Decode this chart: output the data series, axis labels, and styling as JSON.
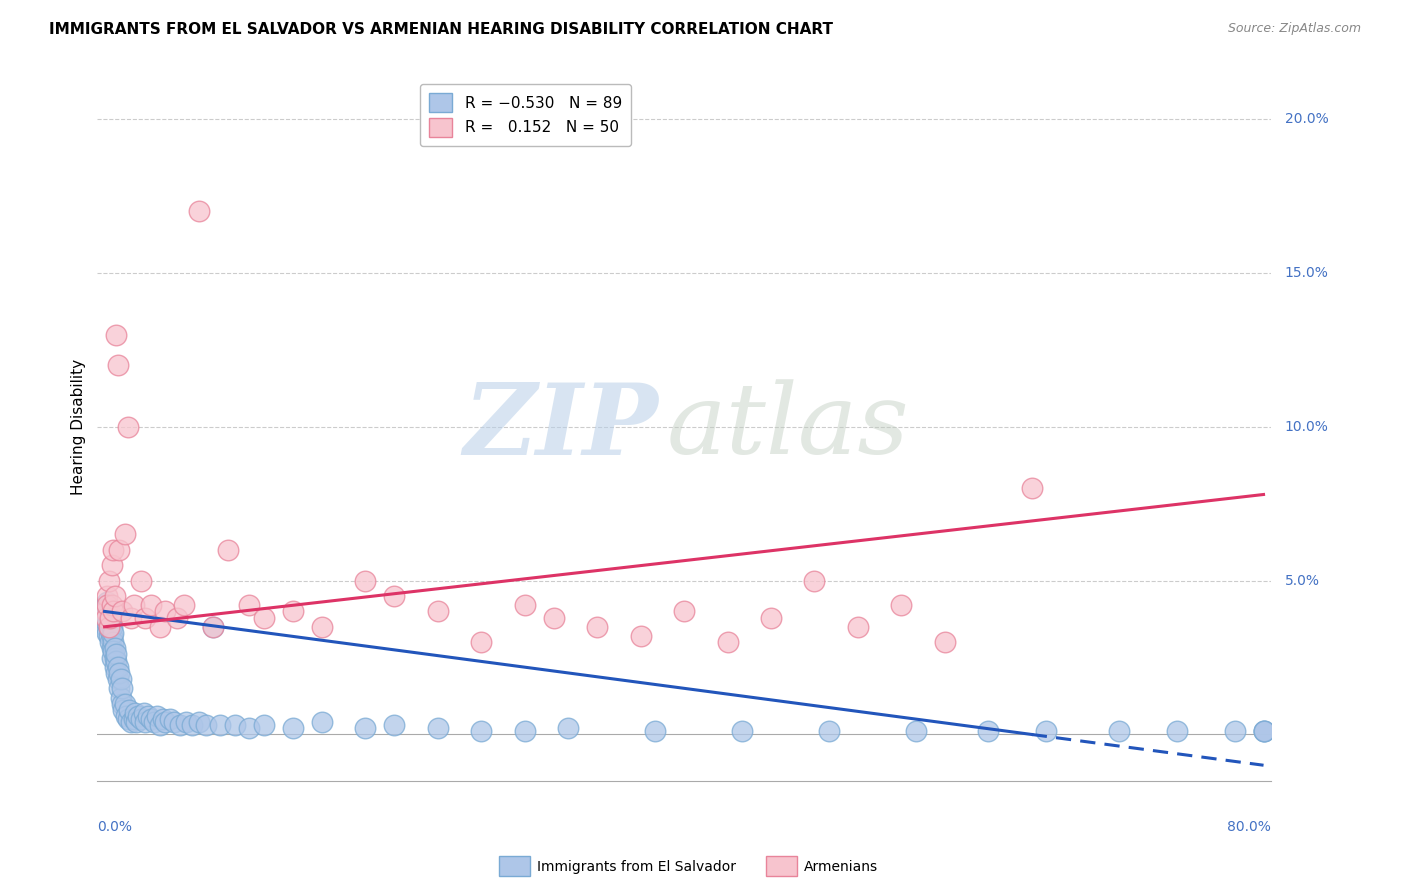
{
  "title": "IMMIGRANTS FROM EL SALVADOR VS ARMENIAN HEARING DISABILITY CORRELATION CHART",
  "source": "Source: ZipAtlas.com",
  "ylabel": "Hearing Disability",
  "right_yticks": [
    "20.0%",
    "15.0%",
    "10.0%",
    "5.0%"
  ],
  "right_ytick_vals": [
    0.2,
    0.15,
    0.1,
    0.05
  ],
  "blue_color": "#aec6e8",
  "pink_color": "#f7c4ce",
  "blue_edge": "#7aaad4",
  "pink_edge": "#e8849a",
  "trend_blue": "#2255bb",
  "trend_pink": "#dd3366",
  "xlim": [
    -0.005,
    0.805
  ],
  "ylim": [
    -0.015,
    0.215
  ],
  "blue_trend_x0": 0.0,
  "blue_trend_y0": 0.04,
  "blue_trend_x1": 0.8,
  "blue_trend_y1": -0.01,
  "pink_trend_x0": 0.0,
  "pink_trend_y0": 0.035,
  "pink_trend_x1": 0.8,
  "pink_trend_y1": 0.078,
  "blue_x": [
    0.001,
    0.001,
    0.001,
    0.002,
    0.002,
    0.002,
    0.002,
    0.002,
    0.003,
    0.003,
    0.003,
    0.003,
    0.004,
    0.004,
    0.004,
    0.004,
    0.005,
    0.005,
    0.005,
    0.005,
    0.006,
    0.006,
    0.006,
    0.007,
    0.007,
    0.007,
    0.008,
    0.008,
    0.008,
    0.009,
    0.009,
    0.01,
    0.01,
    0.011,
    0.011,
    0.012,
    0.012,
    0.013,
    0.014,
    0.015,
    0.016,
    0.017,
    0.018,
    0.02,
    0.021,
    0.022,
    0.023,
    0.025,
    0.027,
    0.028,
    0.03,
    0.032,
    0.034,
    0.036,
    0.038,
    0.04,
    0.042,
    0.045,
    0.048,
    0.052,
    0.056,
    0.06,
    0.065,
    0.07,
    0.075,
    0.08,
    0.09,
    0.1,
    0.11,
    0.13,
    0.15,
    0.18,
    0.2,
    0.23,
    0.26,
    0.29,
    0.32,
    0.38,
    0.44,
    0.5,
    0.56,
    0.61,
    0.65,
    0.7,
    0.74,
    0.78,
    0.8,
    0.8,
    0.8
  ],
  "blue_y": [
    0.04,
    0.035,
    0.042,
    0.038,
    0.043,
    0.036,
    0.041,
    0.033,
    0.038,
    0.035,
    0.04,
    0.032,
    0.036,
    0.03,
    0.038,
    0.034,
    0.028,
    0.032,
    0.035,
    0.025,
    0.03,
    0.033,
    0.027,
    0.025,
    0.028,
    0.022,
    0.024,
    0.02,
    0.026,
    0.018,
    0.022,
    0.015,
    0.02,
    0.012,
    0.018,
    0.01,
    0.015,
    0.008,
    0.01,
    0.006,
    0.005,
    0.008,
    0.004,
    0.005,
    0.007,
    0.004,
    0.006,
    0.005,
    0.007,
    0.004,
    0.006,
    0.005,
    0.004,
    0.006,
    0.003,
    0.005,
    0.004,
    0.005,
    0.004,
    0.003,
    0.004,
    0.003,
    0.004,
    0.003,
    0.035,
    0.003,
    0.003,
    0.002,
    0.003,
    0.002,
    0.004,
    0.002,
    0.003,
    0.002,
    0.001,
    0.001,
    0.002,
    0.001,
    0.001,
    0.001,
    0.001,
    0.001,
    0.001,
    0.001,
    0.001,
    0.001,
    0.001,
    0.001,
    0.001
  ],
  "pink_x": [
    0.001,
    0.001,
    0.002,
    0.002,
    0.003,
    0.003,
    0.004,
    0.005,
    0.005,
    0.006,
    0.006,
    0.007,
    0.008,
    0.009,
    0.01,
    0.012,
    0.014,
    0.016,
    0.018,
    0.02,
    0.025,
    0.028,
    0.032,
    0.038,
    0.042,
    0.05,
    0.055,
    0.065,
    0.075,
    0.085,
    0.1,
    0.11,
    0.13,
    0.15,
    0.18,
    0.2,
    0.23,
    0.26,
    0.29,
    0.31,
    0.34,
    0.37,
    0.4,
    0.43,
    0.46,
    0.49,
    0.52,
    0.55,
    0.58,
    0.64
  ],
  "pink_y": [
    0.04,
    0.038,
    0.045,
    0.042,
    0.035,
    0.05,
    0.038,
    0.055,
    0.042,
    0.04,
    0.06,
    0.045,
    0.13,
    0.12,
    0.06,
    0.04,
    0.065,
    0.1,
    0.038,
    0.042,
    0.05,
    0.038,
    0.042,
    0.035,
    0.04,
    0.038,
    0.042,
    0.17,
    0.035,
    0.06,
    0.042,
    0.038,
    0.04,
    0.035,
    0.05,
    0.045,
    0.04,
    0.03,
    0.042,
    0.038,
    0.035,
    0.032,
    0.04,
    0.03,
    0.038,
    0.05,
    0.035,
    0.042,
    0.03,
    0.08
  ]
}
